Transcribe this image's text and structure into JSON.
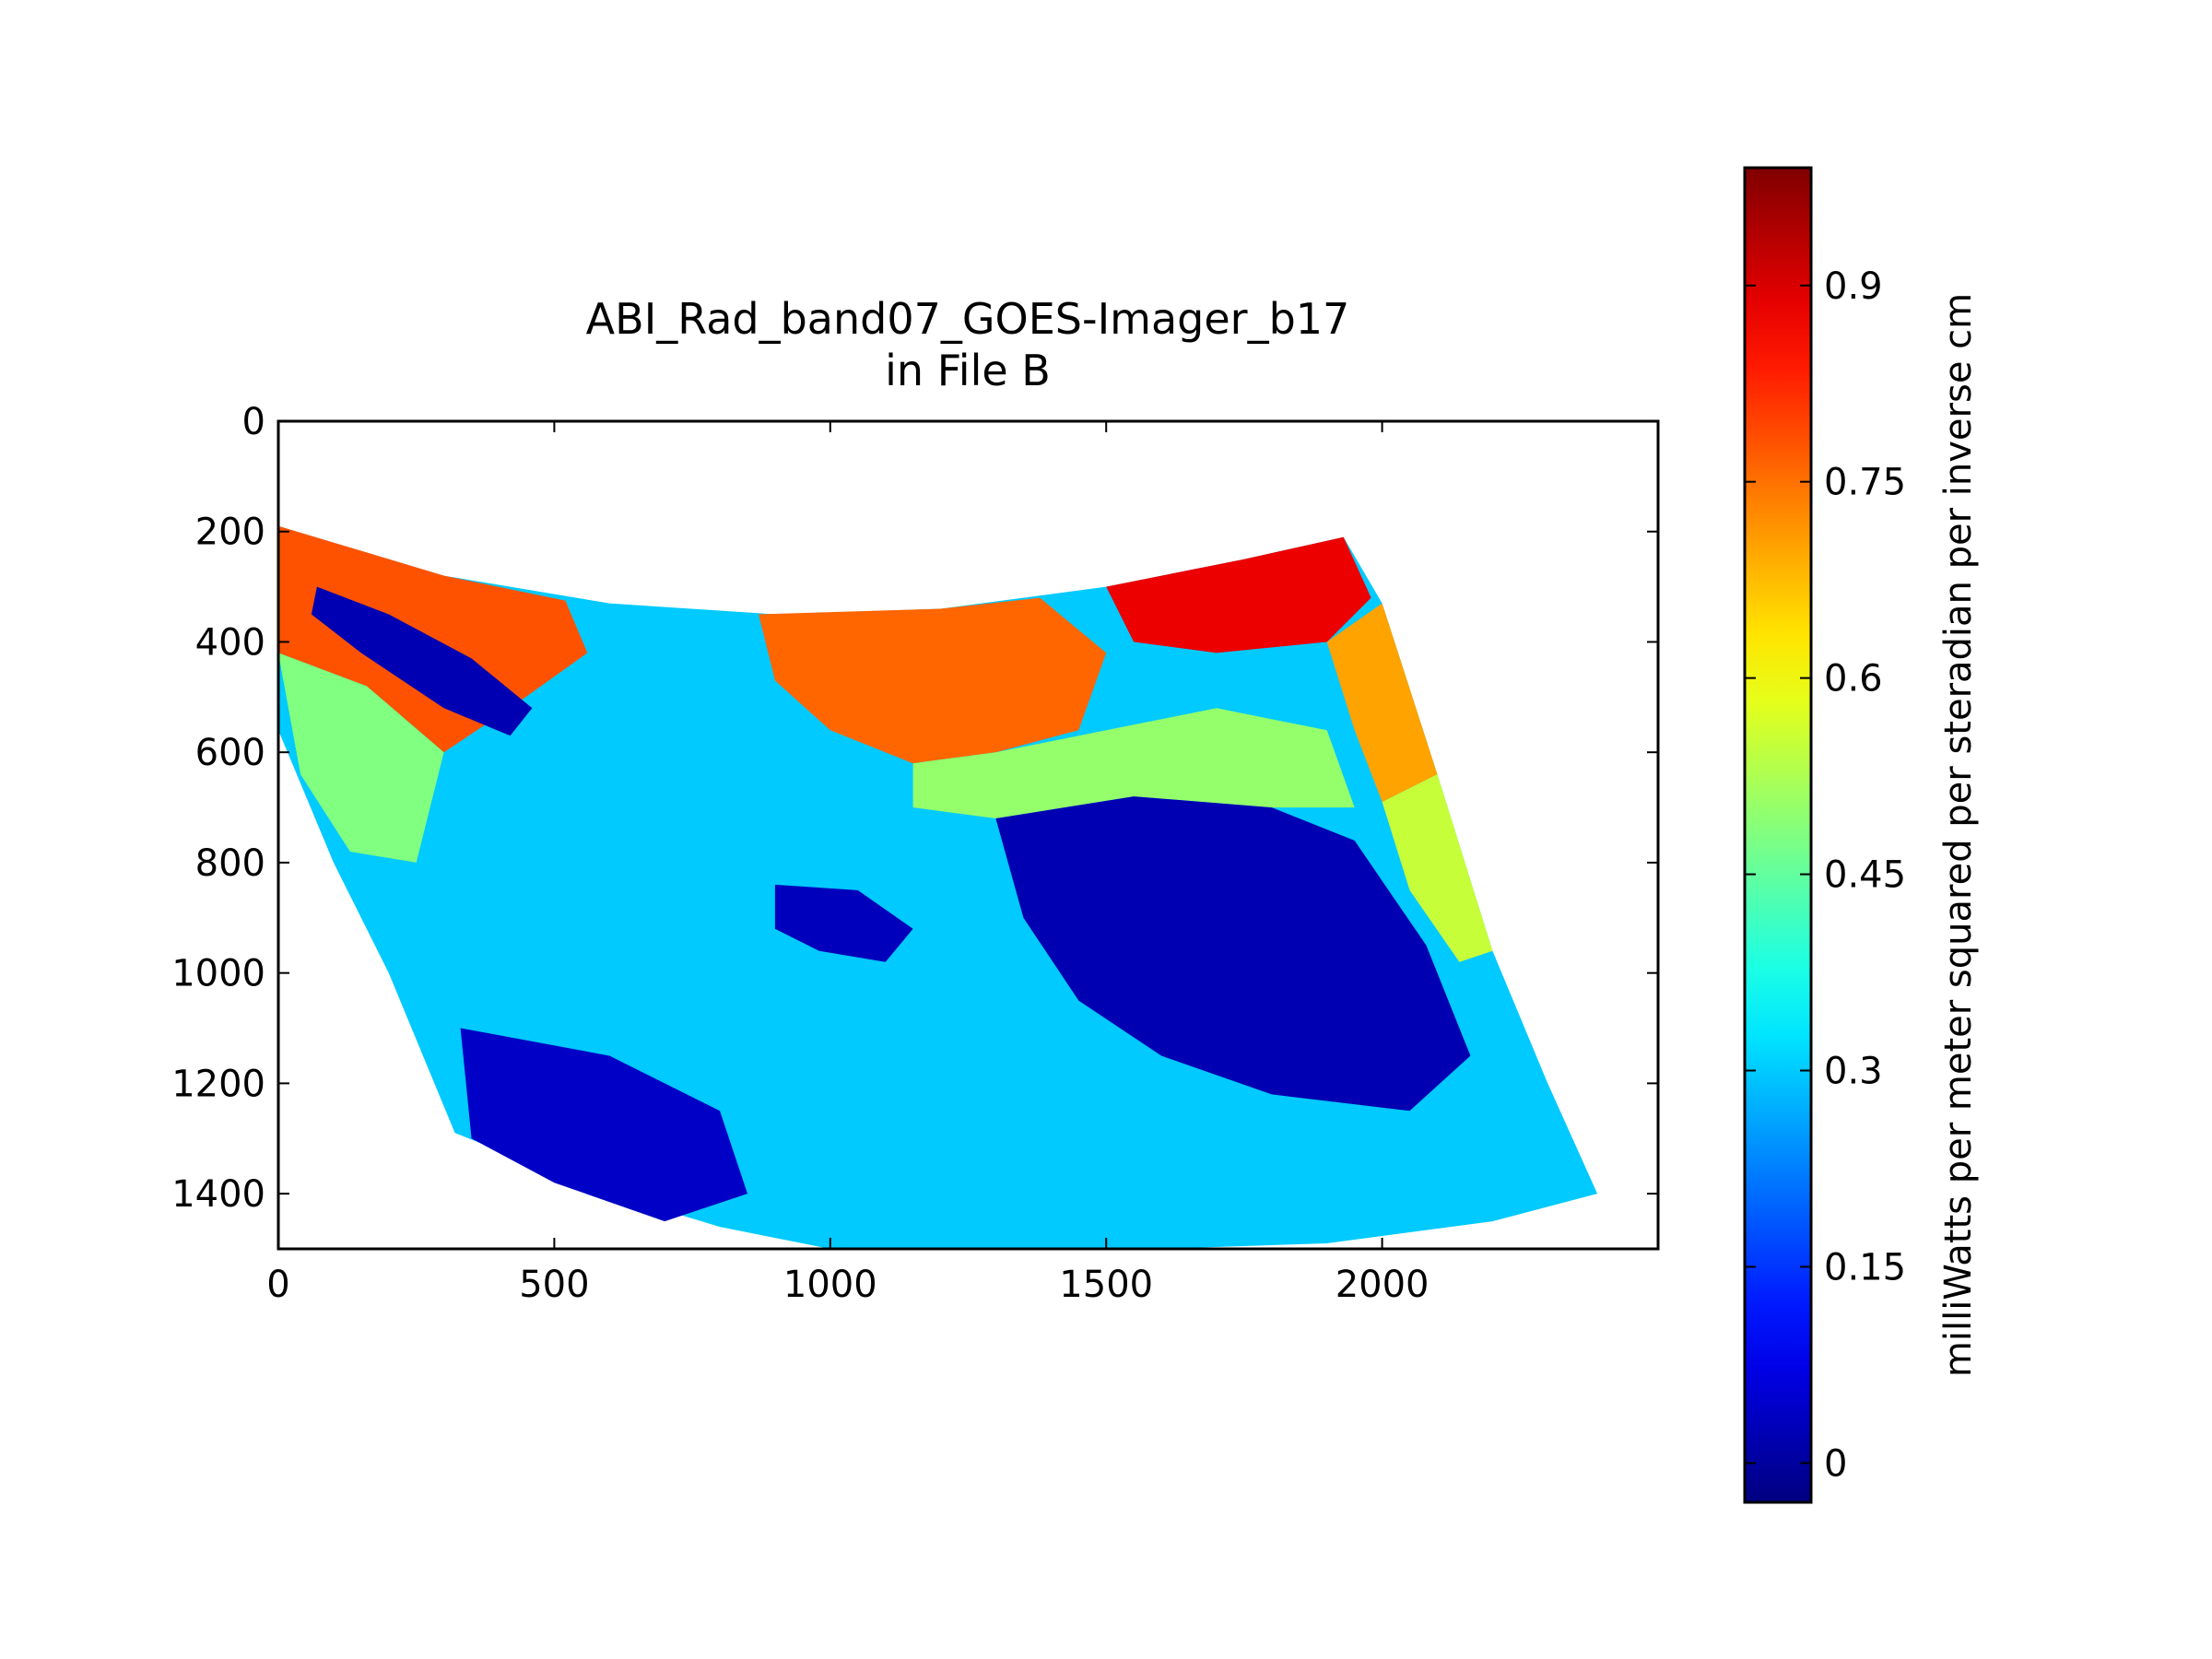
{
  "chart_data": {
    "type": "heatmap",
    "title": "ABI_Rad_band07_GOES-Imager_b17",
    "subtitle": "in File B",
    "xlabel": "",
    "ylabel": "",
    "xlim": [
      0,
      2500
    ],
    "ylim": [
      1500,
      0
    ],
    "y_inverted": true,
    "x_ticks": [
      0,
      500,
      1000,
      1500,
      2000
    ],
    "x_tick_labels": [
      "0",
      "500",
      "1000",
      "1500",
      "2000"
    ],
    "y_ticks": [
      0,
      200,
      400,
      600,
      800,
      1000,
      1200,
      1400
    ],
    "y_tick_labels": [
      "0",
      "200",
      "400",
      "600",
      "800",
      "1000",
      "1200",
      "1400"
    ],
    "grid": false,
    "colormap": "jet",
    "colorbar": {
      "label": "milliWatts per meter squared per steradian per inverse cm",
      "range": [
        -0.03,
        0.99
      ],
      "ticks": [
        0,
        0.15,
        0.3,
        0.45,
        0.6,
        0.75,
        0.9
      ],
      "tick_labels": [
        "0",
        "0.15",
        "0.3",
        "0.45",
        "0.6",
        "0.75",
        "0.9"
      ]
    },
    "swath_outline": [
      {
        "x": 0,
        "y": 190
      },
      {
        "x": 300,
        "y": 280
      },
      {
        "x": 600,
        "y": 330
      },
      {
        "x": 900,
        "y": 350
      },
      {
        "x": 1200,
        "y": 340
      },
      {
        "x": 1500,
        "y": 300
      },
      {
        "x": 1750,
        "y": 250
      },
      {
        "x": 1930,
        "y": 210
      },
      {
        "x": 2000,
        "y": 330
      },
      {
        "x": 2100,
        "y": 640
      },
      {
        "x": 2200,
        "y": 960
      },
      {
        "x": 2300,
        "y": 1200
      },
      {
        "x": 2390,
        "y": 1400
      },
      {
        "x": 2200,
        "y": 1450
      },
      {
        "x": 1900,
        "y": 1490
      },
      {
        "x": 1600,
        "y": 1500
      },
      {
        "x": 1300,
        "y": 1500
      },
      {
        "x": 1000,
        "y": 1500
      },
      {
        "x": 800,
        "y": 1460
      },
      {
        "x": 600,
        "y": 1400
      },
      {
        "x": 320,
        "y": 1290
      },
      {
        "x": 200,
        "y": 1000
      },
      {
        "x": 100,
        "y": 800
      },
      {
        "x": 0,
        "y": 560
      }
    ],
    "regions": [
      {
        "name": "warm-north-band-left",
        "value": 0.78,
        "points": [
          [
            0,
            190
          ],
          [
            300,
            280
          ],
          [
            520,
            325
          ],
          [
            560,
            420
          ],
          [
            420,
            520
          ],
          [
            300,
            600
          ],
          [
            160,
            480
          ],
          [
            0,
            420
          ]
        ]
      },
      {
        "name": "warm-north-band-center",
        "value": 0.76,
        "points": [
          [
            870,
            350
          ],
          [
            1200,
            340
          ],
          [
            1380,
            320
          ],
          [
            1500,
            420
          ],
          [
            1450,
            560
          ],
          [
            1300,
            600
          ],
          [
            1150,
            620
          ],
          [
            1000,
            560
          ],
          [
            900,
            470
          ]
        ]
      },
      {
        "name": "hot-north-right",
        "value": 0.88,
        "points": [
          [
            1500,
            300
          ],
          [
            1750,
            250
          ],
          [
            1930,
            210
          ],
          [
            1980,
            320
          ],
          [
            1900,
            400
          ],
          [
            1700,
            420
          ],
          [
            1550,
            400
          ]
        ]
      },
      {
        "name": "warm-east-edge",
        "value": 0.7,
        "points": [
          [
            1900,
            400
          ],
          [
            2000,
            330
          ],
          [
            2100,
            640
          ],
          [
            2000,
            690
          ],
          [
            1950,
            560
          ]
        ]
      },
      {
        "name": "mid-east-edge",
        "value": 0.55,
        "points": [
          [
            2000,
            690
          ],
          [
            2100,
            640
          ],
          [
            2200,
            960
          ],
          [
            2140,
            980
          ],
          [
            2050,
            850
          ]
        ]
      },
      {
        "name": "mid-center-band",
        "value": 0.5,
        "points": [
          [
            1150,
            620
          ],
          [
            1300,
            600
          ],
          [
            1500,
            560
          ],
          [
            1700,
            520
          ],
          [
            1900,
            560
          ],
          [
            1950,
            700
          ],
          [
            1800,
            700
          ],
          [
            1550,
            680
          ],
          [
            1300,
            720
          ],
          [
            1150,
            700
          ]
        ]
      },
      {
        "name": "mid-west-band",
        "value": 0.48,
        "points": [
          [
            0,
            420
          ],
          [
            160,
            480
          ],
          [
            300,
            600
          ],
          [
            250,
            800
          ],
          [
            130,
            780
          ],
          [
            40,
            640
          ]
        ]
      },
      {
        "name": "cold-cloud-east",
        "value": 0.02,
        "points": [
          [
            1300,
            720
          ],
          [
            1550,
            680
          ],
          [
            1800,
            700
          ],
          [
            1950,
            760
          ],
          [
            2080,
            950
          ],
          [
            2160,
            1150
          ],
          [
            2050,
            1250
          ],
          [
            1800,
            1220
          ],
          [
            1600,
            1150
          ],
          [
            1450,
            1050
          ],
          [
            1350,
            900
          ]
        ]
      },
      {
        "name": "cold-cloud-west",
        "value": 0.04,
        "points": [
          [
            330,
            1100
          ],
          [
            600,
            1150
          ],
          [
            800,
            1250
          ],
          [
            850,
            1400
          ],
          [
            700,
            1450
          ],
          [
            500,
            1380
          ],
          [
            350,
            1300
          ]
        ]
      },
      {
        "name": "cold-streak-northwest",
        "value": 0.02,
        "points": [
          [
            70,
            300
          ],
          [
            200,
            350
          ],
          [
            350,
            430
          ],
          [
            460,
            520
          ],
          [
            420,
            570
          ],
          [
            300,
            520
          ],
          [
            150,
            420
          ],
          [
            60,
            350
          ]
        ]
      },
      {
        "name": "cold-cells-central",
        "value": 0.03,
        "points": [
          [
            900,
            840
          ],
          [
            1050,
            850
          ],
          [
            1150,
            920
          ],
          [
            1100,
            980
          ],
          [
            980,
            960
          ],
          [
            900,
            920
          ]
        ]
      }
    ]
  }
}
